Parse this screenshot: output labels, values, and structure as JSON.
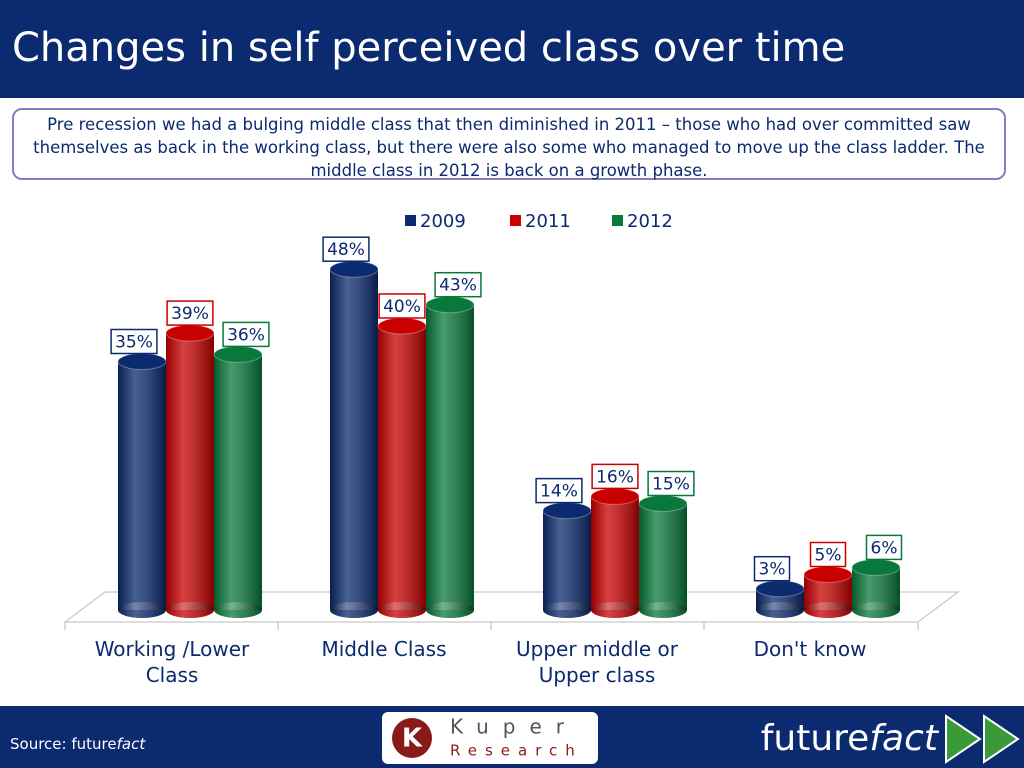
{
  "header": {
    "title": "Changes in self perceived class over time"
  },
  "description": "Pre recession we had a bulging middle class that then diminished in 2011 – those who had over committed saw themselves as back in the working class, but there were also some who managed to move up the class ladder. The middle class in 2012 is back on a growth phase.",
  "chart_data": {
    "type": "bar",
    "categories": [
      "Working /Lower Class",
      "Middle Class",
      "Upper middle or Upper class",
      "Don't know"
    ],
    "series": [
      {
        "name": "2009",
        "color": "#0b2a6f",
        "values": [
          35,
          48,
          14,
          3
        ],
        "value_labels": [
          "35%",
          "48%",
          "14%",
          "3%"
        ]
      },
      {
        "name": "2011",
        "color": "#c80000",
        "values": [
          39,
          40,
          16,
          5
        ],
        "value_labels": [
          "39%",
          "40%",
          "16%",
          "5%"
        ]
      },
      {
        "name": "2012",
        "color": "#08793a",
        "values": [
          36,
          43,
          15,
          6
        ],
        "value_labels": [
          "36%",
          "43%",
          "15%",
          "6%"
        ]
      }
    ],
    "legend": "top"
  },
  "footer": {
    "source": [
      "Source: future",
      "fact"
    ],
    "logo": [
      "Kuper",
      "Research"
    ],
    "brand": [
      "future",
      "fact"
    ]
  }
}
